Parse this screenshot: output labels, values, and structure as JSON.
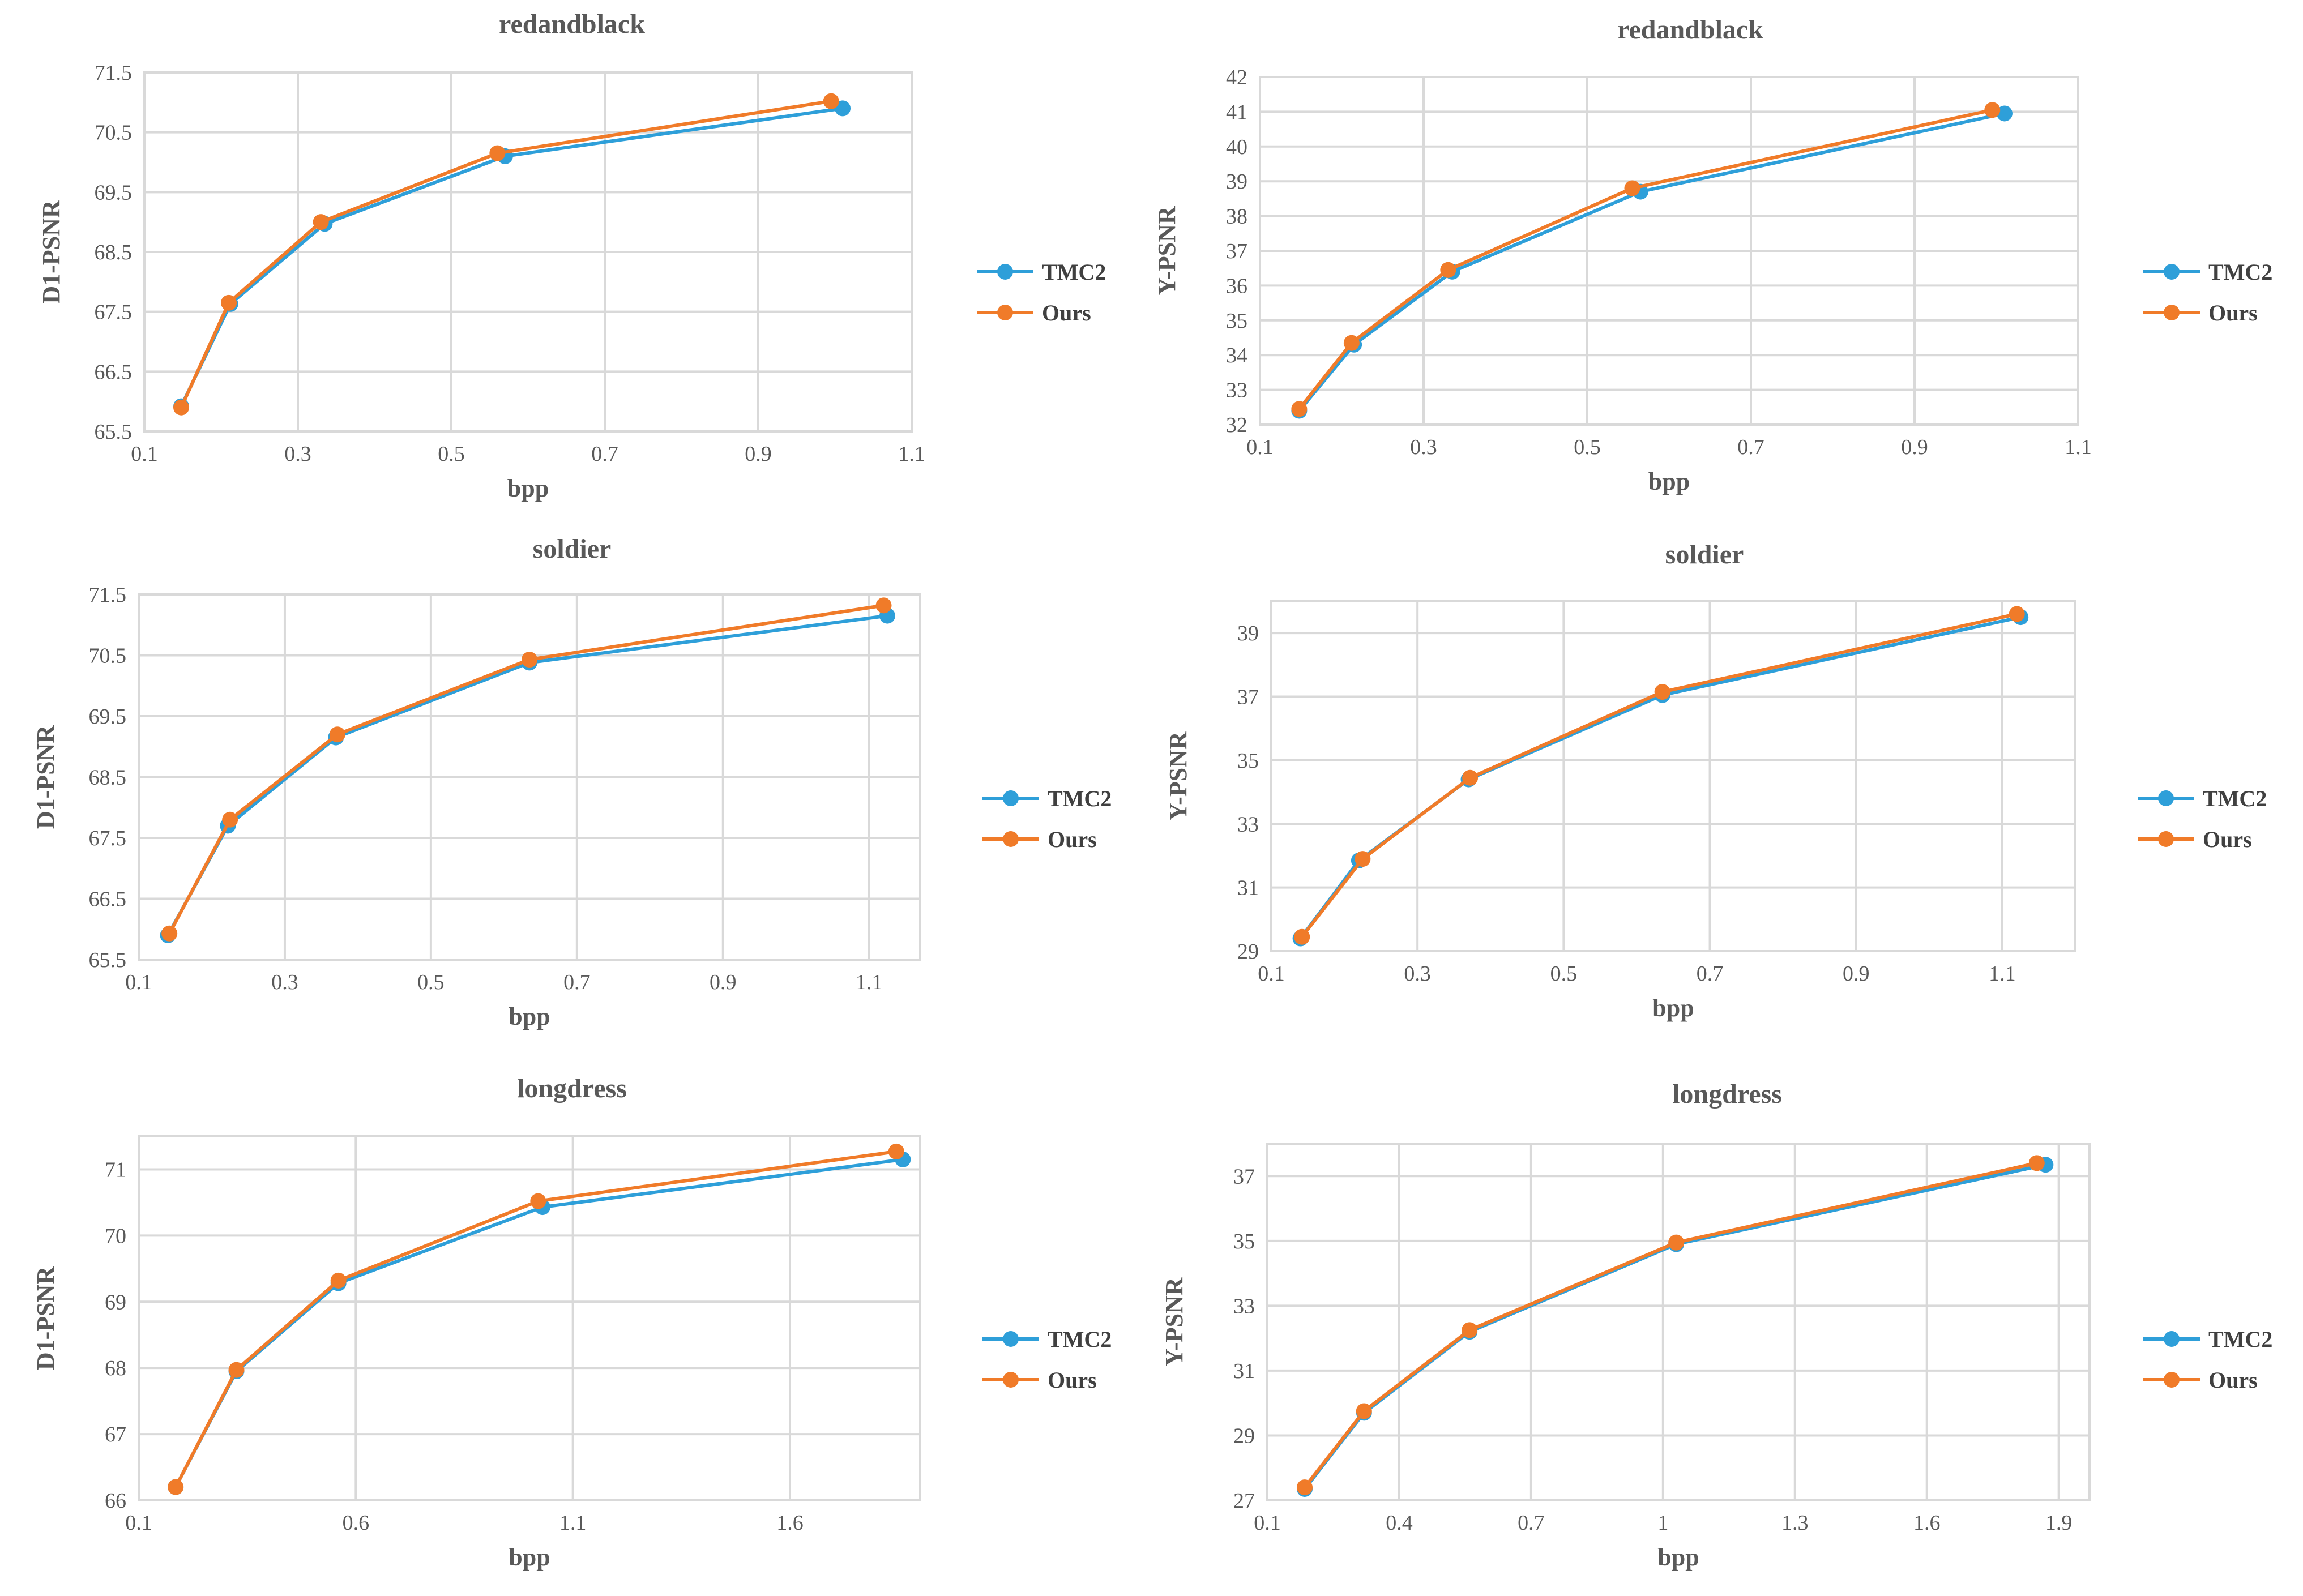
{
  "colors": {
    "TMC2": "#2e9fd9",
    "Ours": "#f07b29",
    "grid": "#d9d9d9",
    "text": "#595959"
  },
  "chart_data": [
    {
      "type": "line",
      "title": "redandblack",
      "xlabel": "bpp",
      "ylabel": "D1-PSNR",
      "xlim": [
        0.1,
        1.1
      ],
      "xticks": [
        0.1,
        0.3,
        0.5,
        0.7,
        0.9,
        1.1
      ],
      "xtick_labels": [
        "0.1",
        "0.3",
        "0.5",
        "0.7",
        "0.9",
        "1.1"
      ],
      "ylim": [
        65.5,
        71.5
      ],
      "yticks": [
        65.5,
        66.5,
        67.5,
        68.5,
        69.5,
        70.5,
        71.5
      ],
      "ytick_labels": [
        "65.5",
        "66.5",
        "67.5",
        "68.5",
        "69.5",
        "70.5",
        "71.5"
      ],
      "legend": "right",
      "series": [
        {
          "name": "TMC2",
          "x": [
            0.148,
            0.212,
            0.335,
            0.57,
            1.01
          ],
          "y": [
            65.92,
            67.63,
            68.97,
            70.1,
            70.9
          ]
        },
        {
          "name": "Ours",
          "x": [
            0.148,
            0.21,
            0.33,
            0.56,
            0.995
          ],
          "y": [
            65.9,
            67.65,
            69.0,
            70.15,
            71.02
          ]
        }
      ]
    },
    {
      "type": "line",
      "title": "redandblack",
      "xlabel": "bpp",
      "ylabel": "Y-PSNR",
      "xlim": [
        0.1,
        1.1
      ],
      "xticks": [
        0.1,
        0.3,
        0.5,
        0.7,
        0.9,
        1.1
      ],
      "xtick_labels": [
        "0.1",
        "0.3",
        "0.5",
        "0.7",
        "0.9",
        "1.1"
      ],
      "ylim": [
        32,
        42
      ],
      "yticks": [
        32,
        33,
        34,
        35,
        36,
        37,
        38,
        39,
        40,
        41,
        42
      ],
      "ytick_labels": [
        "32",
        "33",
        "34",
        "35",
        "36",
        "37",
        "38",
        "39",
        "40",
        "41",
        "42"
      ],
      "legend": "right",
      "series": [
        {
          "name": "TMC2",
          "x": [
            0.148,
            0.215,
            0.335,
            0.565,
            1.01
          ],
          "y": [
            32.4,
            34.3,
            36.4,
            38.7,
            40.95
          ]
        },
        {
          "name": "Ours",
          "x": [
            0.148,
            0.212,
            0.33,
            0.555,
            0.995
          ],
          "y": [
            32.45,
            34.35,
            36.45,
            38.8,
            41.05
          ]
        }
      ]
    },
    {
      "type": "line",
      "title": "soldier",
      "xlabel": "bpp",
      "ylabel": "D1-PSNR",
      "xlim": [
        0.1,
        1.17
      ],
      "xticks": [
        0.1,
        0.3,
        0.5,
        0.7,
        0.9,
        1.1
      ],
      "xtick_labels": [
        "0.1",
        "0.3",
        "0.5",
        "0.7",
        "0.9",
        "1.1"
      ],
      "ylim": [
        65.5,
        71.5
      ],
      "yticks": [
        65.5,
        66.5,
        67.5,
        68.5,
        69.5,
        70.5,
        71.5
      ],
      "ytick_labels": [
        "65.5",
        "66.5",
        "67.5",
        "68.5",
        "69.5",
        "70.5",
        "71.5"
      ],
      "legend": "right",
      "series": [
        {
          "name": "TMC2",
          "x": [
            0.14,
            0.222,
            0.37,
            0.635,
            1.125
          ],
          "y": [
            65.9,
            67.7,
            69.15,
            70.38,
            71.15
          ]
        },
        {
          "name": "Ours",
          "x": [
            0.142,
            0.225,
            0.372,
            0.635,
            1.12
          ],
          "y": [
            65.93,
            67.8,
            69.2,
            70.43,
            71.32
          ]
        }
      ]
    },
    {
      "type": "line",
      "title": "soldier",
      "xlabel": "bpp",
      "ylabel": "Y-PSNR",
      "xlim": [
        0.1,
        1.2
      ],
      "xticks": [
        0.1,
        0.3,
        0.5,
        0.7,
        0.9,
        1.1
      ],
      "xtick_labels": [
        "0.1",
        "0.3",
        "0.5",
        "0.7",
        "0.9",
        "1.1"
      ],
      "ylim": [
        29,
        40
      ],
      "yticks": [
        29,
        31,
        33,
        35,
        37,
        39
      ],
      "ytick_labels": [
        "29",
        "31",
        "33",
        "35",
        "37",
        "39"
      ],
      "legend": "right",
      "series": [
        {
          "name": "TMC2",
          "x": [
            0.14,
            0.22,
            0.37,
            0.635,
            1.125
          ],
          "y": [
            29.4,
            31.85,
            34.4,
            37.05,
            39.5
          ]
        },
        {
          "name": "Ours",
          "x": [
            0.142,
            0.225,
            0.372,
            0.635,
            1.12
          ],
          "y": [
            29.45,
            31.9,
            34.45,
            37.15,
            39.6
          ]
        }
      ]
    },
    {
      "type": "line",
      "title": "longdress",
      "xlabel": "bpp",
      "ylabel": "D1-PSNR",
      "xlim": [
        0.1,
        1.9
      ],
      "xticks": [
        0.1,
        0.6,
        1.1,
        1.6
      ],
      "xtick_labels": [
        "0.1",
        "0.6",
        "1.1",
        "1.6"
      ],
      "ylim": [
        66,
        71.5
      ],
      "yticks": [
        66,
        67,
        68,
        69,
        70,
        71
      ],
      "ytick_labels": [
        "66",
        "67",
        "68",
        "69",
        "70",
        "71"
      ],
      "legend": "right",
      "series": [
        {
          "name": "TMC2",
          "x": [
            0.185,
            0.325,
            0.56,
            1.03,
            1.86
          ],
          "y": [
            66.2,
            67.95,
            69.28,
            70.43,
            71.15
          ]
        },
        {
          "name": "Ours",
          "x": [
            0.185,
            0.325,
            0.56,
            1.02,
            1.845
          ],
          "y": [
            66.2,
            67.97,
            69.32,
            70.52,
            71.27
          ]
        }
      ]
    },
    {
      "type": "line",
      "title": "longdress",
      "xlabel": "bpp",
      "ylabel": "Y-PSNR",
      "xlim": [
        0.1,
        1.97
      ],
      "xticks": [
        0.1,
        0.4,
        0.7,
        1.0,
        1.3,
        1.6,
        1.9
      ],
      "xtick_labels": [
        "0.1",
        "0.4",
        "0.7",
        "1",
        "1.3",
        "1.6",
        "1.9"
      ],
      "ylim": [
        27,
        38
      ],
      "yticks": [
        27,
        29,
        31,
        33,
        35,
        37
      ],
      "ytick_labels": [
        "27",
        "29",
        "31",
        "33",
        "35",
        "37"
      ],
      "legend": "right",
      "series": [
        {
          "name": "TMC2",
          "x": [
            0.185,
            0.32,
            0.56,
            1.03,
            1.87
          ],
          "y": [
            27.35,
            29.7,
            32.2,
            34.9,
            37.35
          ]
        },
        {
          "name": "Ours",
          "x": [
            0.185,
            0.32,
            0.56,
            1.03,
            1.85
          ],
          "y": [
            27.4,
            29.75,
            32.25,
            34.95,
            37.4
          ]
        }
      ]
    }
  ]
}
